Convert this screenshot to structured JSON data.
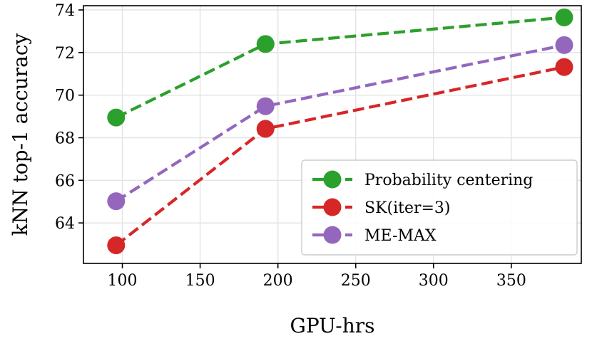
{
  "chart_data": {
    "type": "line",
    "title": "",
    "xlabel": "GPU-hrs",
    "ylabel": "kNN top-1 accuracy",
    "xlim": [
      75,
      395
    ],
    "ylim": [
      62.1,
      74.2
    ],
    "xticks": [
      100,
      150,
      200,
      250,
      300,
      350
    ],
    "yticks": [
      64,
      66,
      68,
      70,
      72,
      74
    ],
    "grid": true,
    "legend_position": "lower right",
    "line_style": "dashed",
    "marker": "circle",
    "x": [
      96,
      192,
      384
    ],
    "series": [
      {
        "name": "Probability centering",
        "color": "#2ca02c",
        "values": [
          68.95,
          72.4,
          73.65
        ]
      },
      {
        "name": "SK(iter=3)",
        "color": "#d62728",
        "values": [
          62.95,
          68.42,
          71.32
        ]
      },
      {
        "name": "ME-MAX",
        "color": "#9467bd",
        "values": [
          65.02,
          69.48,
          72.35
        ]
      }
    ]
  }
}
